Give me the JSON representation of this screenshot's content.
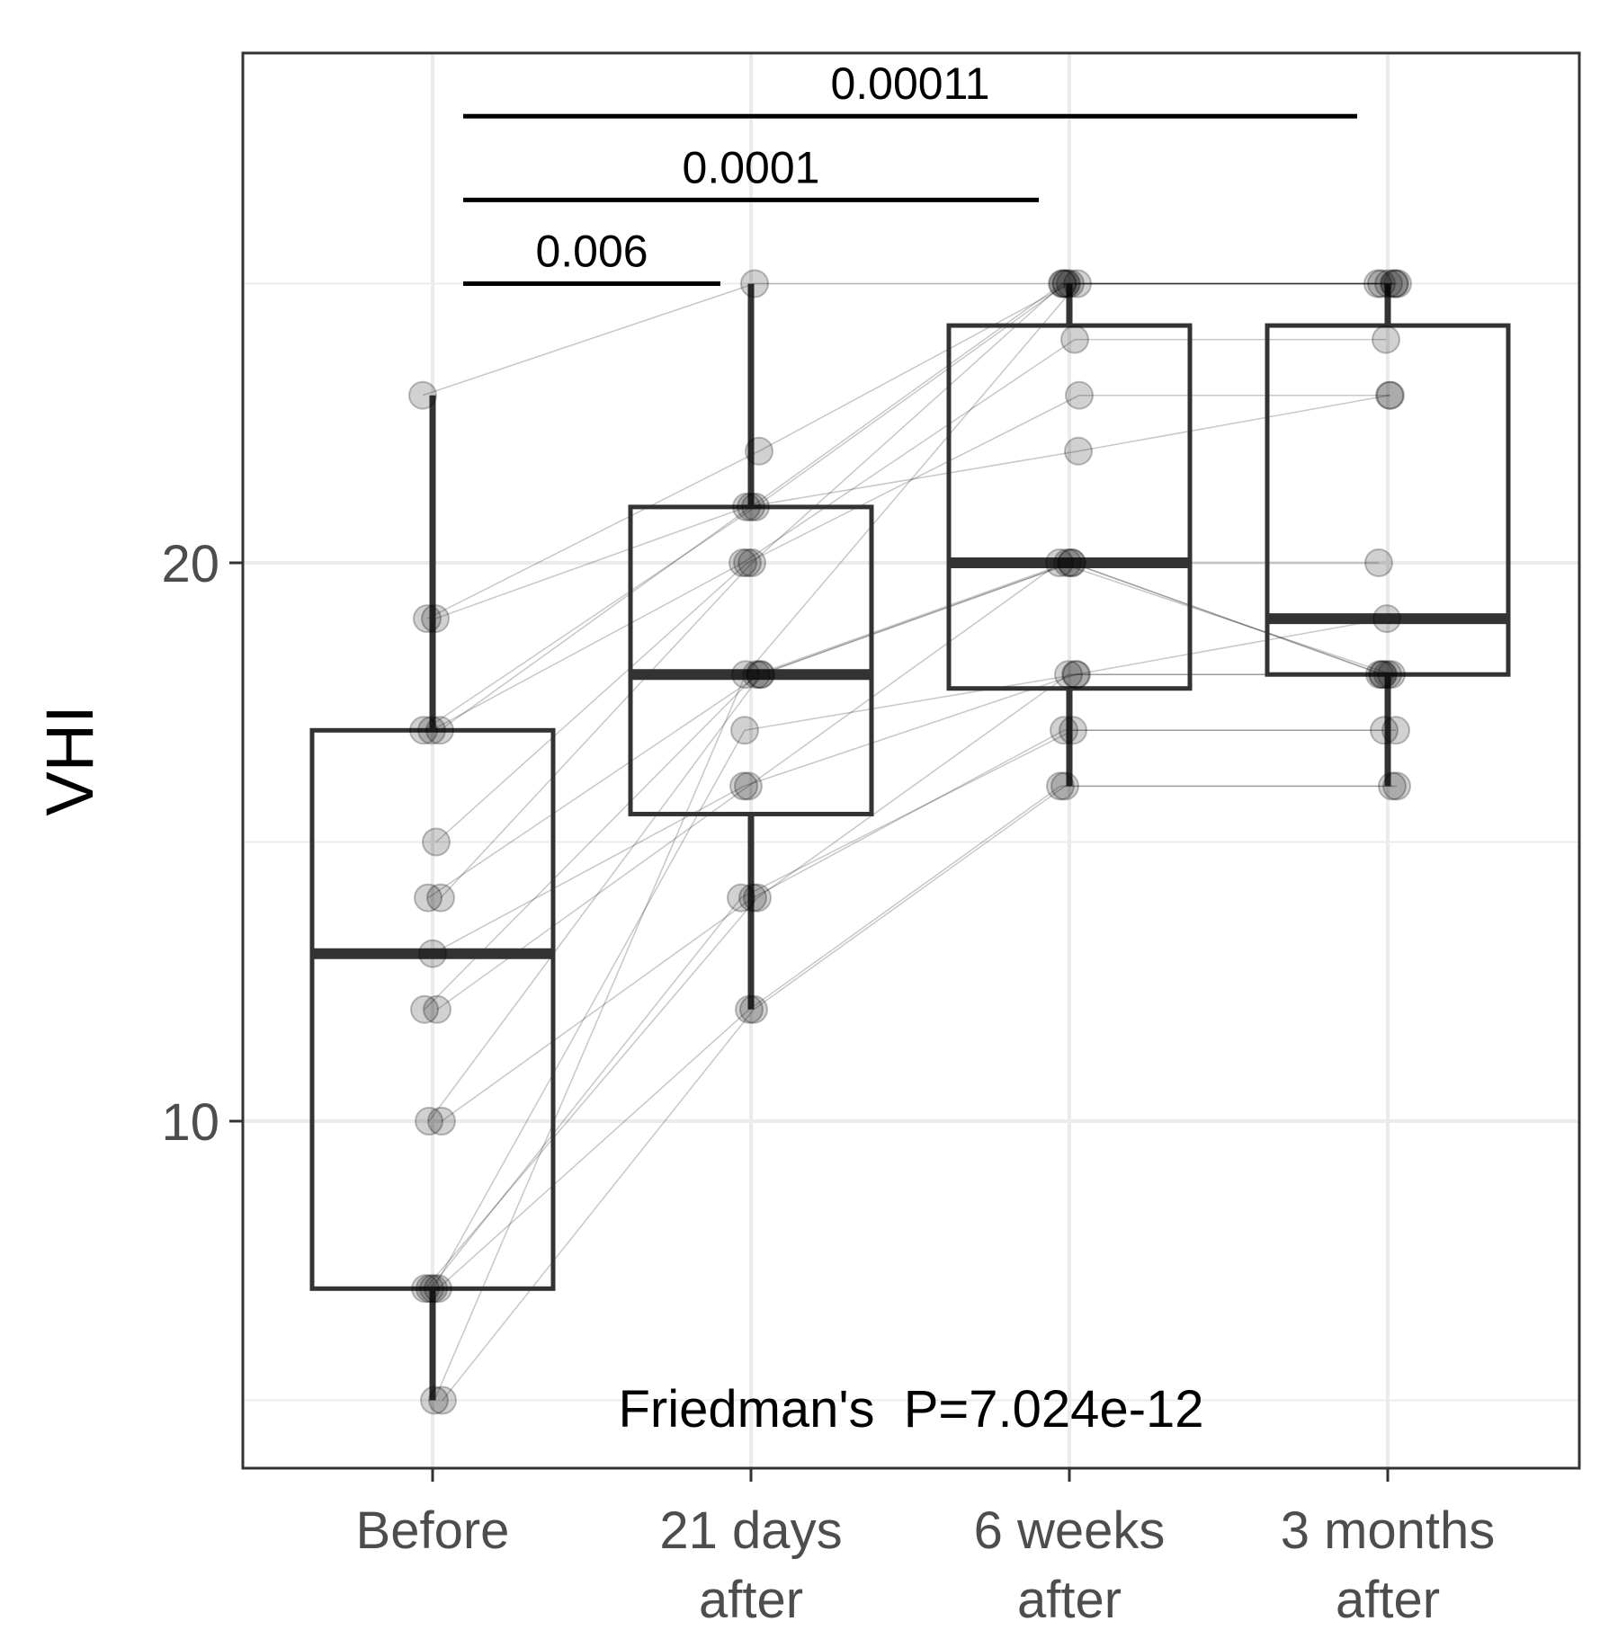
{
  "chart_data": {
    "type": "boxplot",
    "title": "",
    "xlabel": "",
    "ylabel": "VHI",
    "ylim": [
      4.7,
      30
    ],
    "yticks": [
      10,
      20
    ],
    "grid": true,
    "categories": [
      {
        "line1": "Before",
        "line2": ""
      },
      {
        "line1": "21 days",
        "line2": "after"
      },
      {
        "line1": "6 weeks",
        "line2": "after"
      },
      {
        "line1": "3 months",
        "line2": "after"
      }
    ],
    "boxes": [
      {
        "q1": 7,
        "median": 13,
        "q3": 17,
        "whisker_low": 5,
        "whisker_high": 23
      },
      {
        "q1": 15.5,
        "median": 18,
        "q3": 21,
        "whisker_low": 12,
        "whisker_high": 25
      },
      {
        "q1": 17.75,
        "median": 20,
        "q3": 24.25,
        "whisker_low": 16,
        "whisker_high": 25
      },
      {
        "q1": 18,
        "median": 19,
        "q3": 24.25,
        "whisker_low": 16,
        "whisker_high": 25
      }
    ],
    "subjects": [
      [
        23,
        25,
        25,
        25
      ],
      [
        19,
        21,
        22,
        23
      ],
      [
        19,
        22,
        25,
        25
      ],
      [
        17,
        21,
        25,
        25
      ],
      [
        17,
        20,
        24,
        24
      ],
      [
        17,
        21,
        25,
        25
      ],
      [
        15,
        20,
        23,
        23
      ],
      [
        14,
        18,
        20,
        18
      ],
      [
        14,
        20,
        25,
        25
      ],
      [
        13,
        16,
        18,
        19
      ],
      [
        12,
        18,
        20,
        20
      ],
      [
        12,
        16,
        20,
        18
      ],
      [
        10,
        18,
        20,
        18
      ],
      [
        10,
        14,
        17,
        17
      ],
      [
        7,
        17,
        18,
        18
      ],
      [
        7,
        14,
        18,
        18
      ],
      [
        7,
        12,
        16,
        16
      ],
      [
        7,
        14,
        17,
        17
      ],
      [
        5,
        12,
        16,
        16
      ],
      [
        5,
        18,
        25,
        25
      ]
    ],
    "comparisons": [
      {
        "from": 0,
        "to": 1,
        "y": 25,
        "label": "0.006"
      },
      {
        "from": 0,
        "to": 2,
        "y": 26.5,
        "label": "0.0001"
      },
      {
        "from": 0,
        "to": 3,
        "y": 28,
        "label": "0.00011"
      }
    ],
    "annotation": "Friedman's  P=7.024e-12"
  }
}
